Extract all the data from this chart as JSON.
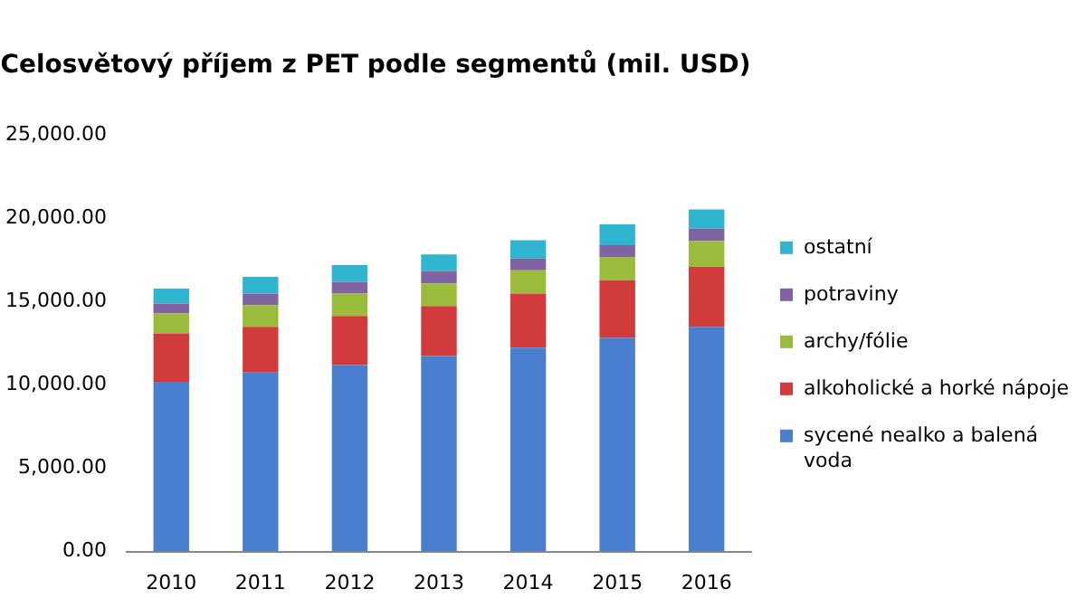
{
  "chart_data": {
    "type": "bar",
    "title": "Celosvětový příjem z PET podle segmentů (mil. USD)",
    "stacked": true,
    "categories": [
      "2010",
      "2011",
      "2012",
      "2013",
      "2014",
      "2015",
      "2016"
    ],
    "series": [
      {
        "name": "sycené nealko a balená voda",
        "color": "#4a7fcf",
        "values": [
          10200,
          10750,
          11200,
          11750,
          12250,
          12850,
          13500
        ]
      },
      {
        "name": "alkoholické a horké nápoje",
        "color": "#d23b3b",
        "values": [
          2900,
          2750,
          2950,
          3000,
          3250,
          3450,
          3600
        ]
      },
      {
        "name": "archy/fólie",
        "color": "#9bbb3a",
        "values": [
          1200,
          1300,
          1350,
          1350,
          1400,
          1400,
          1550
        ]
      },
      {
        "name": "potraviny",
        "color": "#8064a2",
        "values": [
          600,
          700,
          700,
          750,
          700,
          700,
          750
        ]
      },
      {
        "name": "ostatní",
        "color": "#2fb5d0",
        "values": [
          900,
          1000,
          1000,
          1000,
          1100,
          1250,
          1150
        ]
      }
    ],
    "ylim": [
      0,
      25000
    ],
    "yticks": [
      {
        "value": 0,
        "label": "0.00"
      },
      {
        "value": 5000,
        "label": "5,000.00"
      },
      {
        "value": 10000,
        "label": "10,000.00"
      },
      {
        "value": 15000,
        "label": "15,000.00"
      },
      {
        "value": 20000,
        "label": "20,000.00"
      },
      {
        "value": 25000,
        "label": "25,000.00"
      }
    ],
    "grid": false,
    "legend": "right"
  }
}
